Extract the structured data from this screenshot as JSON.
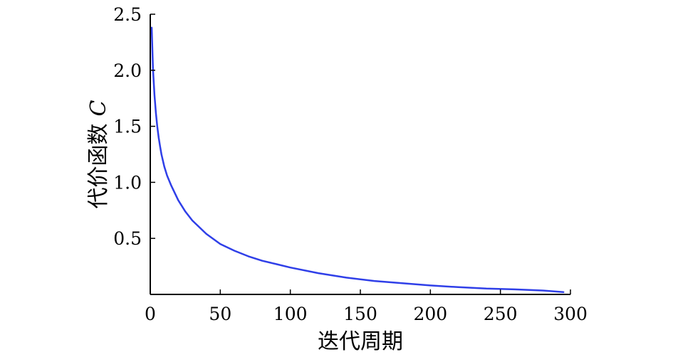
{
  "chart_data": {
    "type": "line",
    "title": "",
    "xlabel": "迭代周期",
    "ylabel": "代价函数",
    "ylabel_symbol": "C",
    "xlim": [
      0,
      300
    ],
    "ylim": [
      0,
      2.5
    ],
    "x_ticks": [
      "0",
      "50",
      "100",
      "150",
      "200",
      "250",
      "300"
    ],
    "y_ticks": [
      "0.5",
      "1.0",
      "1.5",
      "2.0",
      "2.5"
    ],
    "grid": false,
    "legend": "none",
    "series": [
      {
        "color": "#2f3fe8",
        "x": [
          1,
          2,
          3,
          4,
          5,
          6,
          7,
          8,
          10,
          12,
          15,
          20,
          25,
          30,
          40,
          50,
          60,
          70,
          80,
          90,
          100,
          120,
          140,
          160,
          180,
          200,
          220,
          240,
          260,
          280,
          295
        ],
        "y": [
          2.38,
          2.0,
          1.78,
          1.62,
          1.5,
          1.4,
          1.32,
          1.25,
          1.14,
          1.06,
          0.97,
          0.84,
          0.74,
          0.66,
          0.54,
          0.45,
          0.39,
          0.34,
          0.3,
          0.27,
          0.24,
          0.19,
          0.15,
          0.12,
          0.1,
          0.08,
          0.065,
          0.052,
          0.045,
          0.035,
          0.02
        ]
      }
    ]
  }
}
